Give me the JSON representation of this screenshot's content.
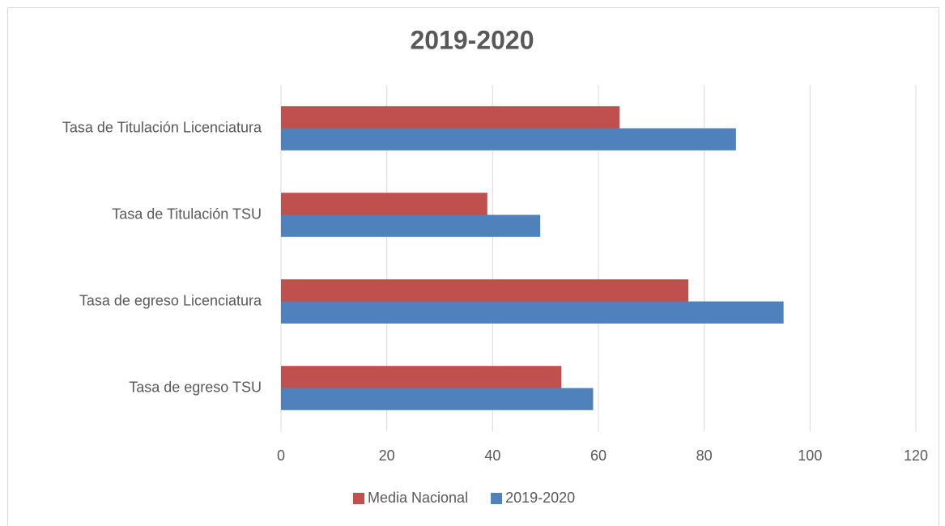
{
  "chart_data": {
    "type": "hbar",
    "title": "2019-2020",
    "categories": [
      "Tasa de Titulación Licenciatura",
      "Tasa de Titulación TSU",
      "Tasa de egreso Licenciatura",
      "Tasa de egreso TSU"
    ],
    "series": [
      {
        "name": "Media Nacional",
        "color": "#c0504d",
        "values": [
          64,
          39,
          77,
          53
        ]
      },
      {
        "name": "2019-2020",
        "color": "#4f81bd",
        "values": [
          86,
          49,
          95,
          59
        ]
      }
    ],
    "xlim": [
      0,
      120
    ],
    "xticks": [
      0,
      20,
      40,
      60,
      80,
      100,
      120
    ],
    "grid": true,
    "legend": "bottom"
  }
}
